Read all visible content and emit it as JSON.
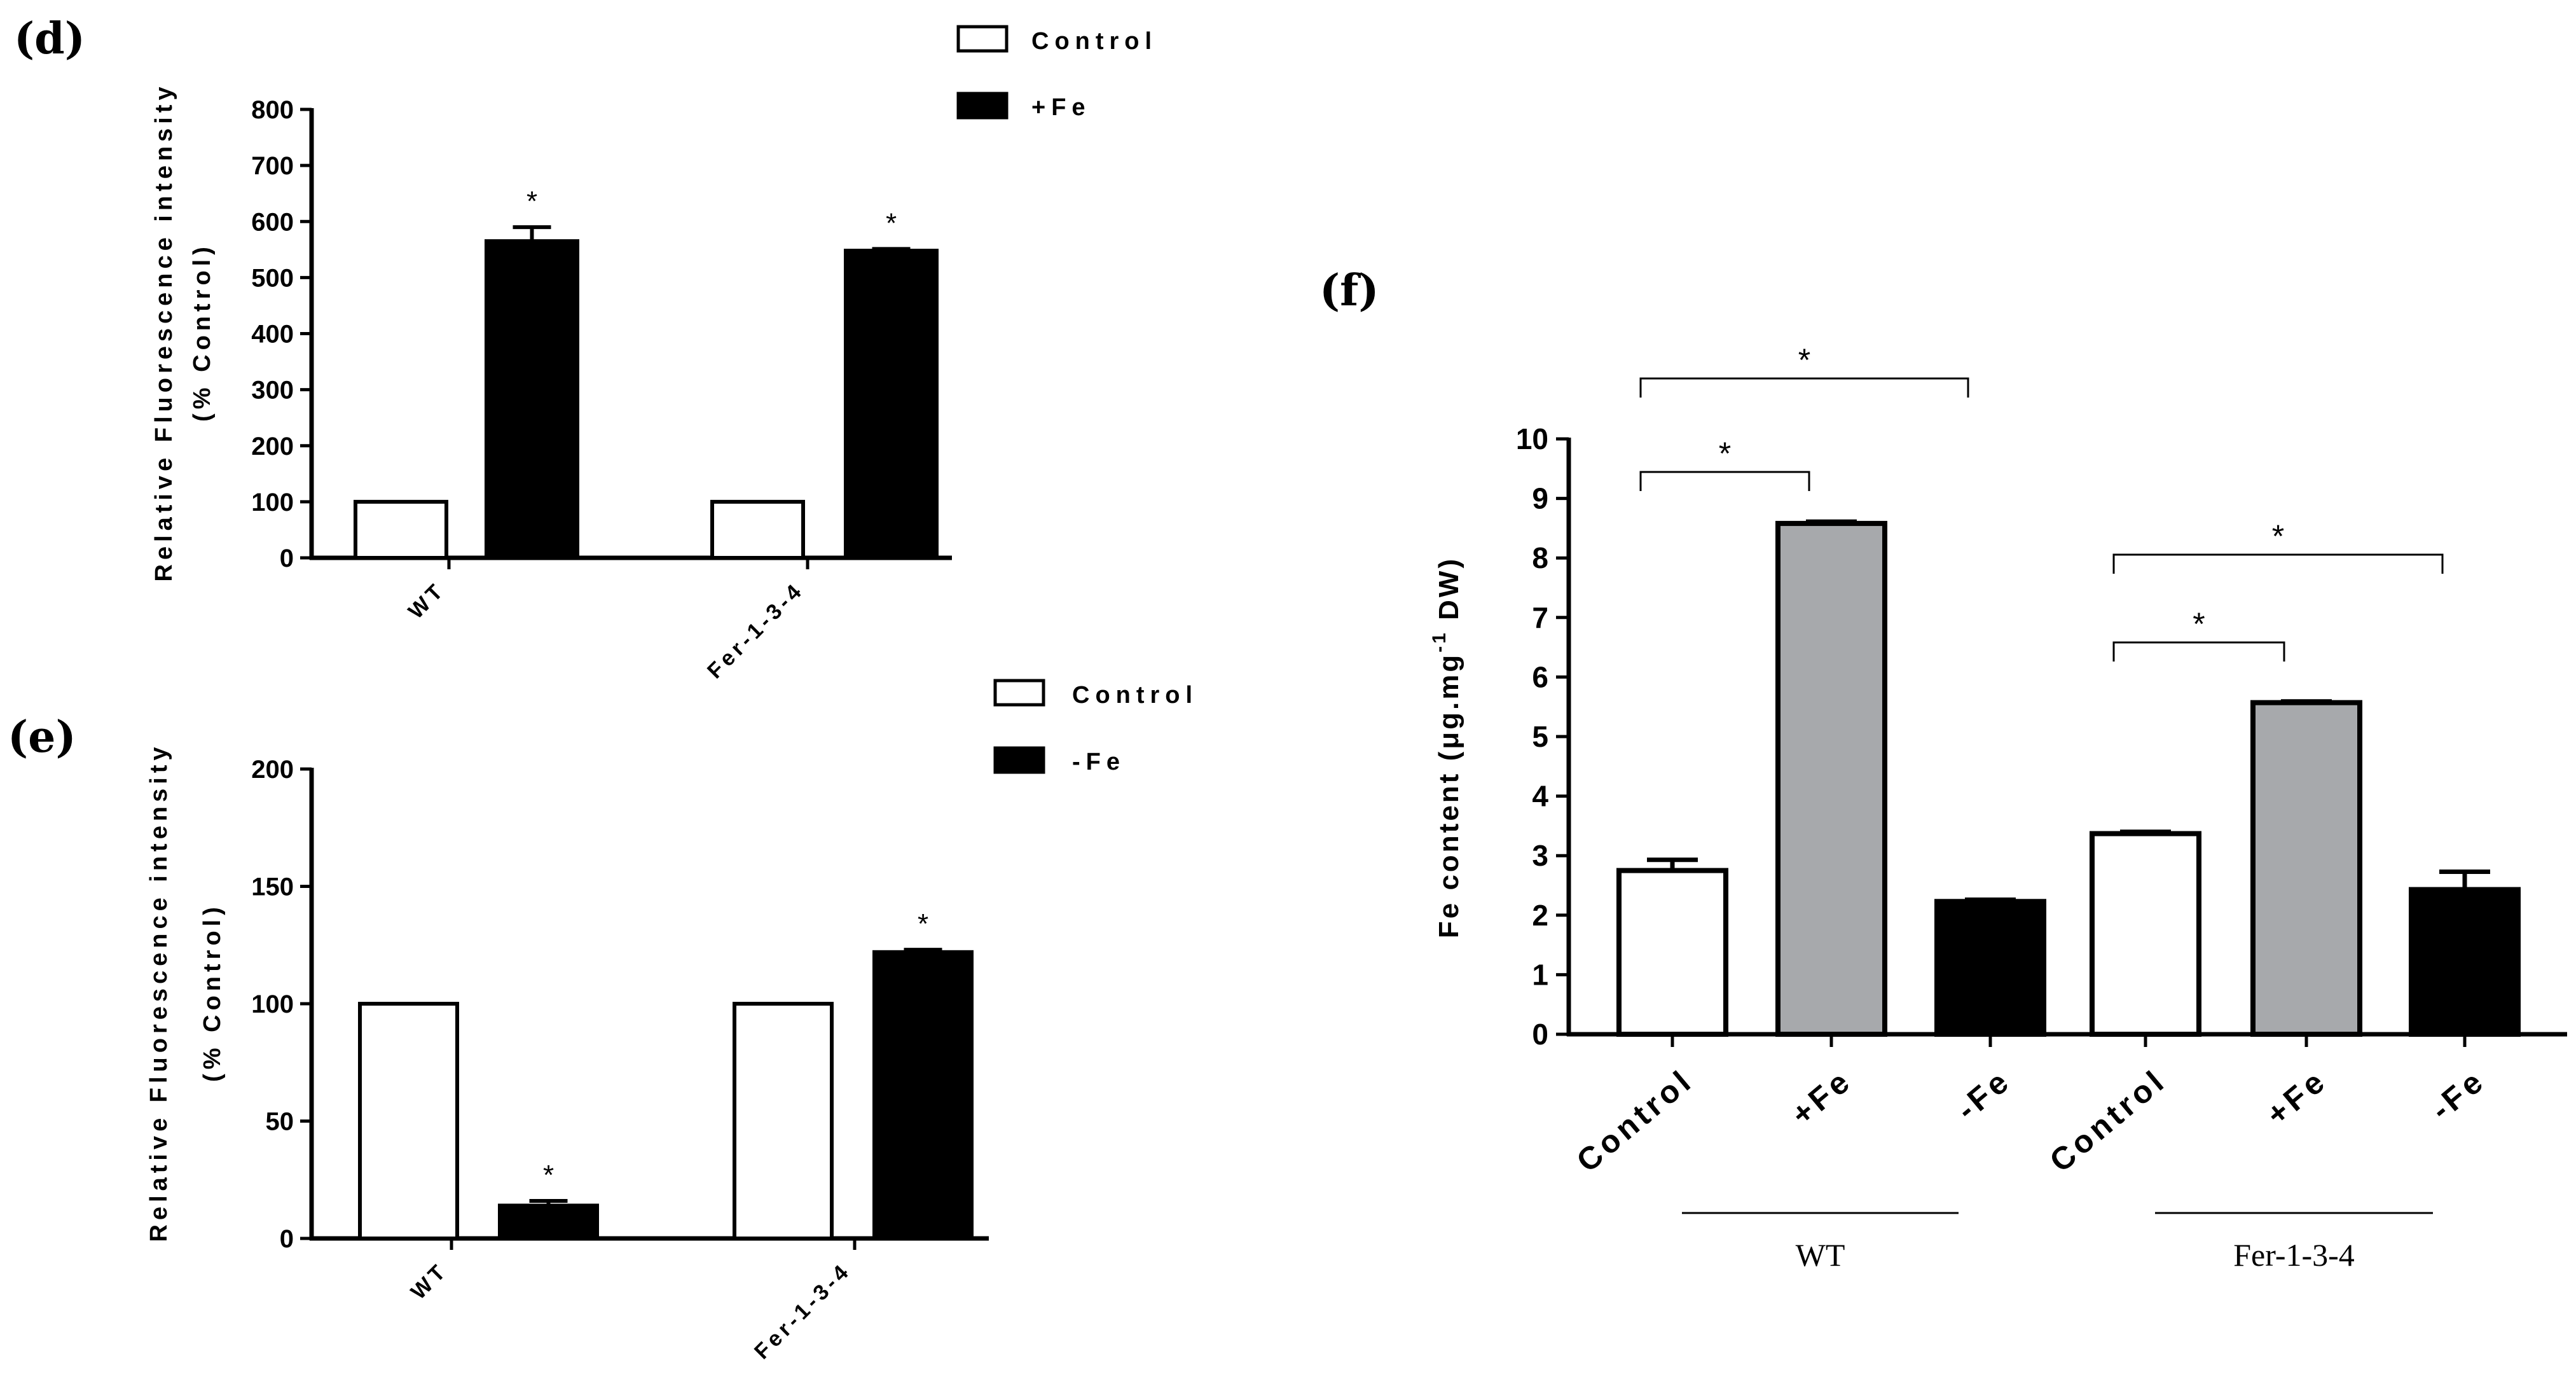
{
  "chart_data": [
    {
      "panel": "(d)",
      "type": "bar",
      "title": "",
      "ylabel_line1": "Relative Fluorescence intensity",
      "ylabel_line2": "(% Control)",
      "xlabel": "",
      "ylim": [
        0,
        800
      ],
      "yticks": [
        "0",
        "100",
        "200",
        "300",
        "400",
        "500",
        "600",
        "700",
        "800"
      ],
      "categories": [
        "WT",
        "Fer-1-3-4"
      ],
      "series": [
        {
          "name": "Control",
          "fill": "#ffffff",
          "values": [
            100,
            100
          ],
          "errors": [
            0,
            0
          ],
          "stars": [
            "",
            ""
          ]
        },
        {
          "name": "+Fe",
          "fill": "#000000",
          "values": [
            565,
            548
          ],
          "errors": [
            25,
            3
          ],
          "stars": [
            "*",
            "*"
          ]
        }
      ]
    },
    {
      "panel": "(e)",
      "type": "bar",
      "title": "",
      "ylabel_line1": "Relative Fluorescence intensity",
      "ylabel_line2": "(% Control)",
      "xlabel": "",
      "ylim": [
        0,
        200
      ],
      "yticks": [
        "0",
        "50",
        "100",
        "150",
        "200"
      ],
      "categories": [
        "WT",
        "Fer-1-3-4"
      ],
      "series": [
        {
          "name": "Control",
          "fill": "#ffffff",
          "values": [
            100,
            100
          ],
          "errors": [
            0,
            0
          ],
          "stars": [
            "",
            ""
          ]
        },
        {
          "name": "-Fe",
          "fill": "#000000",
          "values": [
            14,
            122
          ],
          "errors": [
            2,
            1
          ],
          "stars": [
            "*",
            "*"
          ]
        }
      ]
    },
    {
      "panel": "(f)",
      "type": "bar",
      "title": "",
      "ylabel": "Fe content (μg.mg",
      "ylabel_sup": "-1",
      "ylabel_end": " DW)",
      "xlabel": "",
      "ylim": [
        0,
        10
      ],
      "yticks": [
        "0",
        "1",
        "2",
        "3",
        "4",
        "5",
        "6",
        "7",
        "8",
        "9",
        "10"
      ],
      "categories": [
        "Control",
        "+Fe",
        "-Fe",
        "Control",
        "+Fe",
        "-Fe"
      ],
      "groups": [
        {
          "name": "WT",
          "members": [
            0,
            1,
            2
          ]
        },
        {
          "name": "Fer-1-3-4",
          "members": [
            3,
            4,
            5
          ]
        }
      ],
      "values": [
        2.75,
        8.58,
        2.23,
        3.37,
        5.57,
        2.43
      ],
      "errors": [
        0.18,
        0.03,
        0.03,
        0.03,
        0.02,
        0.3
      ],
      "fills": [
        "#ffffff",
        "#a7a9ac",
        "#000000",
        "#ffffff",
        "#a7a9ac",
        "#000000"
      ],
      "significance": [
        {
          "from": 0,
          "to": 1,
          "label": "*"
        },
        {
          "from": 0,
          "to": 2,
          "label": "*"
        },
        {
          "from": 3,
          "to": 4,
          "label": "*"
        },
        {
          "from": 3,
          "to": 5,
          "label": "*"
        }
      ]
    }
  ]
}
